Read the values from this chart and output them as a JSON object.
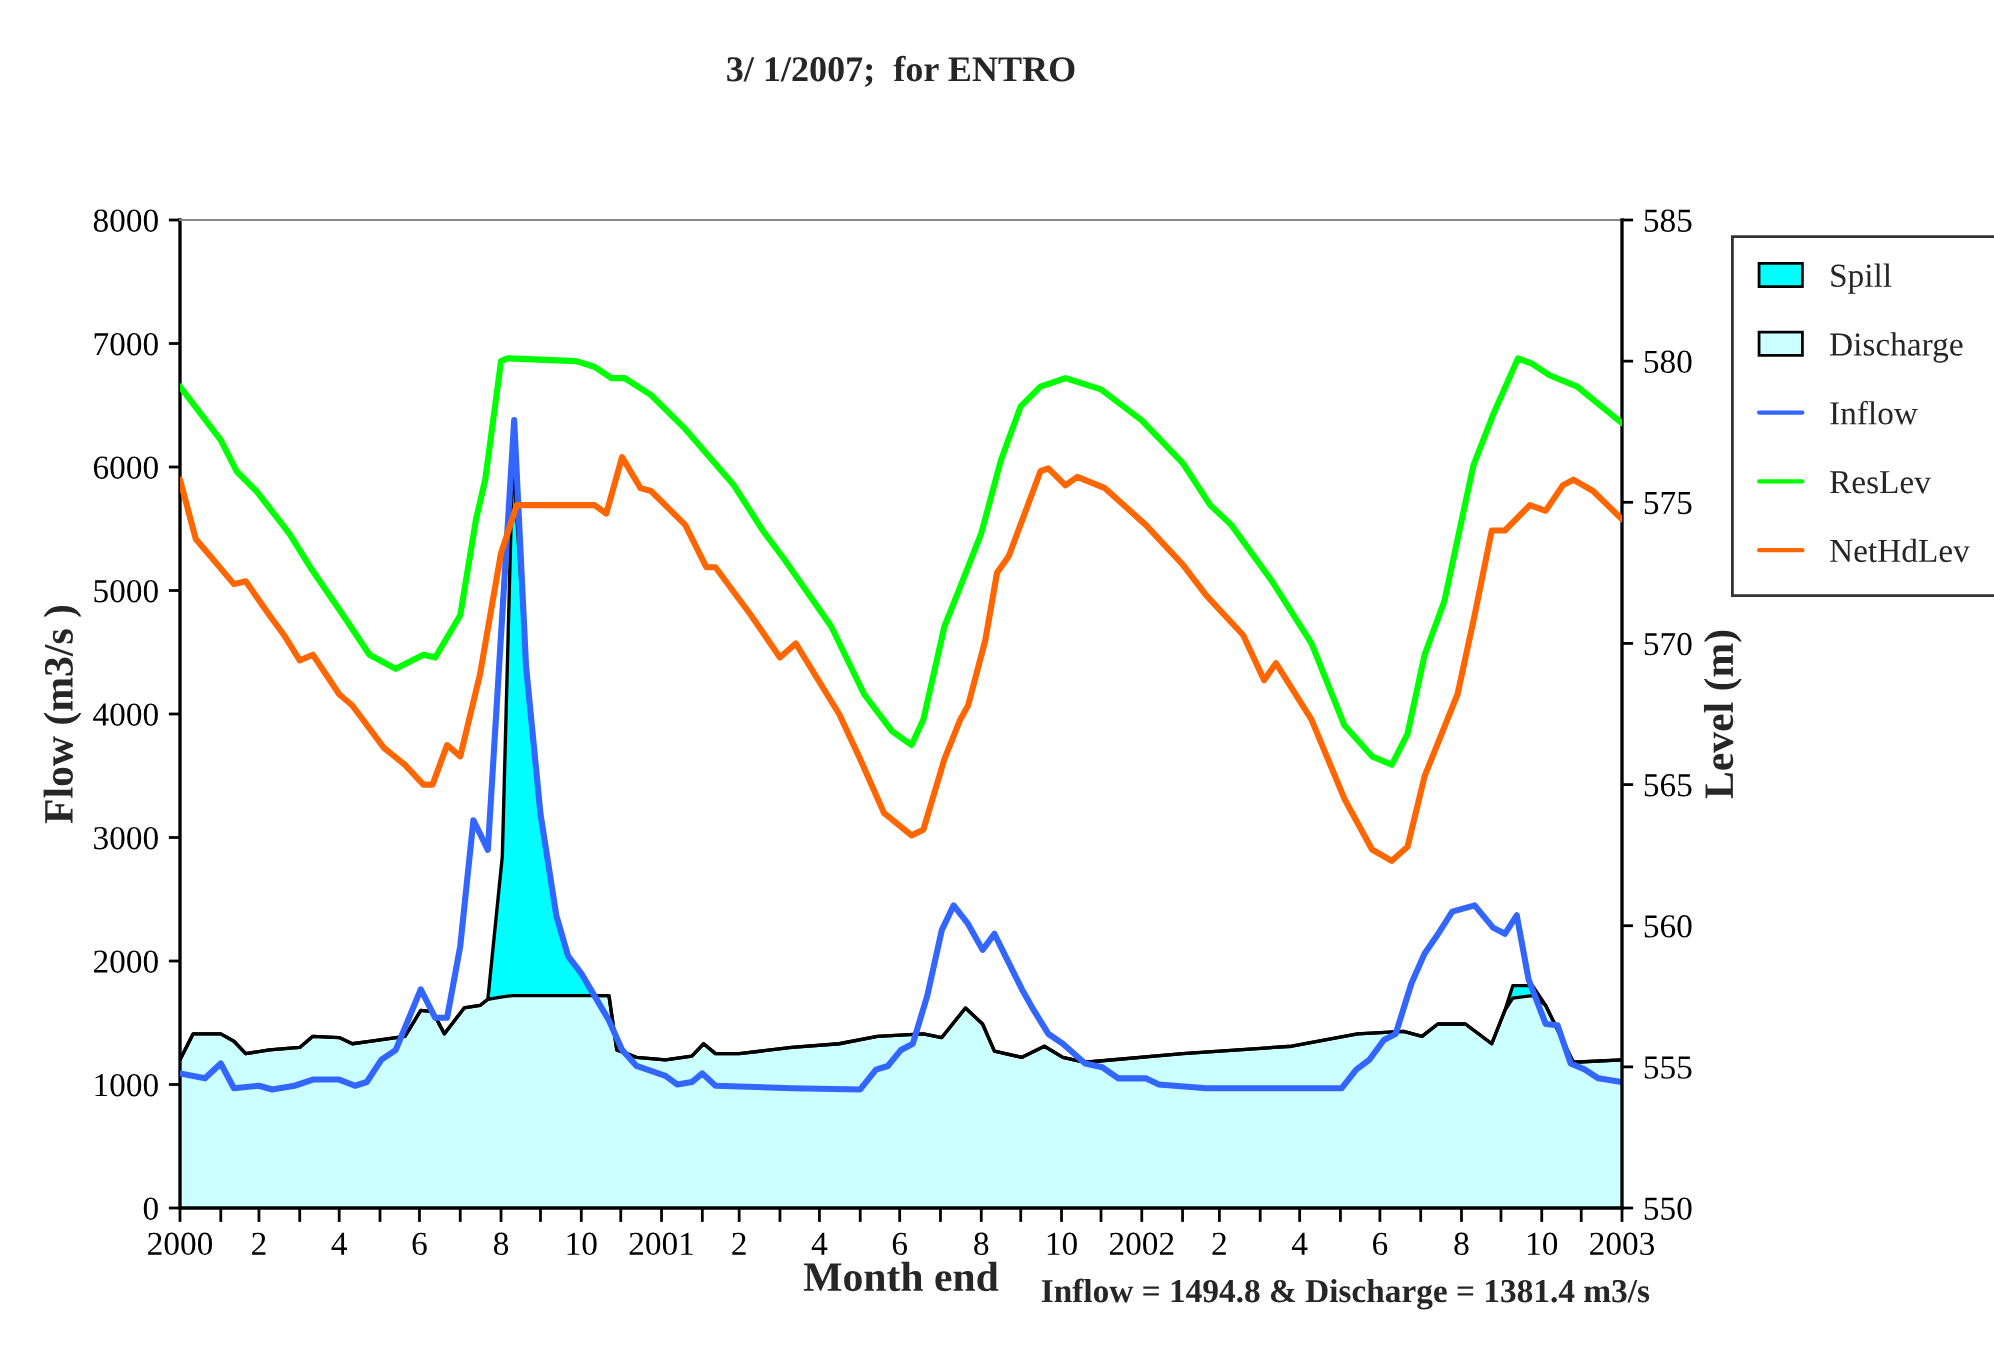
{
  "chart_data": {
    "type": "area",
    "title": "3/ 1/2007;  for ENTRO",
    "xlabel": "Month end",
    "ylabel": "Flow (m3/s )",
    "y2label": "Level (m)",
    "annotations": [
      "Inflow = 1494.8 & Discharge = 1381.4 m3/s"
    ],
    "stacked": true,
    "legend": "right",
    "grid": false,
    "x": [
      "2000-01-01",
      "2000-01-11",
      "2000-02-01",
      "2000-02-11",
      "2000-02-20",
      "2000-03-09",
      "2000-04-01",
      "2000-04-11",
      "2000-05-01",
      "2000-05-11",
      "2000-05-24",
      "2000-06-20",
      "2000-07-02",
      "2000-07-11",
      "2000-07-20",
      "2000-08-04",
      "2000-08-16",
      "2000-08-22",
      "2000-09-02",
      "2000-09-10",
      "2000-09-20",
      "2000-10-01",
      "2000-10-13",
      "2000-10-22",
      "2000-11-01",
      "2000-11-10",
      "2000-11-22",
      "2000-11-28",
      "2000-12-13",
      "2001-01-04",
      "2001-01-24",
      "2001-02-02",
      "2001-02-11",
      "2001-03-01",
      "2001-04-10",
      "2001-05-16",
      "2001-06-14",
      "2001-07-19",
      "2001-08-02",
      "2001-08-20",
      "2001-09-02",
      "2001-09-11",
      "2001-10-02",
      "2001-10-19",
      "2001-11-02",
      "2001-11-19",
      "2002-02-01",
      "2002-04-25",
      "2002-06-14",
      "2002-07-19",
      "2002-08-02",
      "2002-08-14",
      "2002-09-04",
      "2002-09-24",
      "2002-10-04",
      "2002-10-10",
      "2002-10-25",
      "2002-11-04",
      "2002-11-25",
      "2003-01-01"
    ],
    "xlim": [
      "2000-01",
      "2003-01"
    ],
    "xticks": [
      {
        "value": "2000-01",
        "label": "2000"
      },
      {
        "value": "2000-02",
        "label": null
      },
      {
        "value": "2000-03",
        "label": "2"
      },
      {
        "value": "2000-04",
        "label": null
      },
      {
        "value": "2000-05",
        "label": "4"
      },
      {
        "value": "2000-06",
        "label": null
      },
      {
        "value": "2000-07",
        "label": "6"
      },
      {
        "value": "2000-08",
        "label": null
      },
      {
        "value": "2000-09",
        "label": "8"
      },
      {
        "value": "2000-10",
        "label": null
      },
      {
        "value": "2000-11",
        "label": "10"
      },
      {
        "value": "2000-12",
        "label": null
      },
      {
        "value": "2001-01",
        "label": "2001"
      },
      {
        "value": "2001-02",
        "label": null
      },
      {
        "value": "2001-03",
        "label": "2"
      },
      {
        "value": "2001-04",
        "label": null
      },
      {
        "value": "2001-05",
        "label": "4"
      },
      {
        "value": "2001-06",
        "label": null
      },
      {
        "value": "2001-07",
        "label": "6"
      },
      {
        "value": "2001-08",
        "label": null
      },
      {
        "value": "2001-09",
        "label": "8"
      },
      {
        "value": "2001-10",
        "label": null
      },
      {
        "value": "2001-11",
        "label": "10"
      },
      {
        "value": "2001-12",
        "label": null
      },
      {
        "value": "2002-01",
        "label": "2002"
      },
      {
        "value": "2002-02",
        "label": null
      },
      {
        "value": "2002-03",
        "label": "2"
      },
      {
        "value": "2002-04",
        "label": null
      },
      {
        "value": "2002-05",
        "label": "4"
      },
      {
        "value": "2002-06",
        "label": null
      },
      {
        "value": "2002-07",
        "label": "6"
      },
      {
        "value": "2002-08",
        "label": null
      },
      {
        "value": "2002-09",
        "label": "8"
      },
      {
        "value": "2002-10",
        "label": null
      },
      {
        "value": "2002-11",
        "label": "10"
      },
      {
        "value": "2002-12",
        "label": null
      },
      {
        "value": "2003-01",
        "label": "2003"
      }
    ],
    "ylim": [
      0,
      8000
    ],
    "yticks": [
      0,
      1000,
      2000,
      3000,
      4000,
      5000,
      6000,
      7000,
      8000
    ],
    "y2lim": [
      550,
      585
    ],
    "y2ticks": [
      550,
      555,
      560,
      565,
      570,
      575,
      580,
      585
    ],
    "series": [
      {
        "name": "Discharge",
        "color": "#ccffff",
        "values": [
          1200,
          1410,
          1410,
          1350,
          1250,
          1280,
          1300,
          1390,
          1380,
          1330,
          1350,
          1390,
          1600,
          1590,
          1410,
          1620,
          1640,
          1690,
          1710,
          1720,
          1720,
          1720,
          1720,
          1720,
          1720,
          1720,
          1720,
          1280,
          1220,
          1200,
          1230,
          1330,
          1250,
          1250,
          1300,
          1330,
          1390,
          1410,
          1380,
          1620,
          1490,
          1270,
          1220,
          1310,
          1220,
          1180,
          1250,
          1310,
          1410,
          1430,
          1390,
          1490,
          1490,
          1330,
          1600,
          1700,
          1720,
          1640,
          1180,
          1200
        ]
      },
      {
        "name": "Spill",
        "color": "#00ffff",
        "values": [
          0,
          0,
          0,
          0,
          0,
          0,
          0,
          0,
          0,
          0,
          0,
          0,
          0,
          0,
          0,
          0,
          0,
          0,
          1140,
          4380,
          2670,
          1470,
          650,
          320,
          180,
          0,
          0,
          0,
          0,
          0,
          0,
          0,
          0,
          0,
          0,
          0,
          0,
          0,
          0,
          0,
          0,
          0,
          0,
          0,
          0,
          0,
          0,
          0,
          0,
          0,
          0,
          0,
          0,
          0,
          0,
          100,
          80,
          0,
          0,
          0
        ]
      },
      {
        "name": "Inflow",
        "type": "line",
        "color": "#3366ff",
        "x": [
          "2000-01-01",
          "2000-01-20",
          "2000-02-01",
          "2000-02-11",
          "2000-03-01",
          "2000-03-11",
          "2000-03-28",
          "2000-04-11",
          "2000-05-01",
          "2000-05-13",
          "2000-05-22",
          "2000-06-02",
          "2000-06-13",
          "2000-07-02",
          "2000-07-13",
          "2000-07-22",
          "2000-08-01",
          "2000-08-11",
          "2000-08-22",
          "2000-09-11",
          "2000-09-20",
          "2000-10-01",
          "2000-10-13",
          "2000-10-22",
          "2000-11-01",
          "2000-11-22",
          "2000-12-02",
          "2000-12-13",
          "2001-01-04",
          "2001-01-13",
          "2001-01-24",
          "2001-02-01",
          "2001-02-11",
          "2001-04-10",
          "2001-06-01",
          "2001-06-13",
          "2001-06-22",
          "2001-07-02",
          "2001-07-11",
          "2001-07-22",
          "2001-08-02",
          "2001-08-11",
          "2001-08-22",
          "2001-09-02",
          "2001-09-11",
          "2001-10-02",
          "2001-10-11",
          "2001-10-22",
          "2001-11-02",
          "2001-11-19",
          "2001-12-02",
          "2001-12-14",
          "2002-01-04",
          "2002-01-14",
          "2002-02-19",
          "2002-04-25",
          "2002-06-02",
          "2002-06-13",
          "2002-06-23",
          "2002-07-04",
          "2002-07-13",
          "2002-07-25",
          "2002-08-04",
          "2002-08-13",
          "2002-08-25",
          "2002-09-11",
          "2002-09-25",
          "2002-10-04",
          "2002-10-13",
          "2002-10-22",
          "2002-11-04",
          "2002-11-13",
          "2002-11-23",
          "2002-12-04",
          "2002-12-14",
          "2003-01-01"
        ],
        "values": [
          1090,
          1050,
          1170,
          970,
          990,
          960,
          990,
          1040,
          1040,
          990,
          1020,
          1200,
          1280,
          1770,
          1540,
          1540,
          2120,
          3140,
          2900,
          6380,
          4390,
          3190,
          2370,
          2040,
          1900,
          1520,
          1280,
          1150,
          1070,
          1000,
          1020,
          1090,
          990,
          970,
          960,
          1120,
          1150,
          1280,
          1330,
          1720,
          2250,
          2450,
          2300,
          2090,
          2220,
          1770,
          1600,
          1410,
          1330,
          1170,
          1140,
          1050,
          1050,
          1000,
          970,
          970,
          970,
          1120,
          1200,
          1360,
          1410,
          1820,
          2060,
          2200,
          2400,
          2450,
          2270,
          2220,
          2370,
          1850,
          1490,
          1480,
          1170,
          1120,
          1050,
          1020
        ]
      },
      {
        "name": "ResLev",
        "type": "line",
        "axis": "y2",
        "color": "#00ff00",
        "x": [
          "2000-01-01",
          "2000-02-01",
          "2000-02-13",
          "2000-02-28",
          "2000-03-24",
          "2000-04-09",
          "2000-05-04",
          "2000-05-24",
          "2000-06-13",
          "2000-07-04",
          "2000-07-13",
          "2000-08-01",
          "2000-08-13",
          "2000-08-20",
          "2000-09-01",
          "2000-09-06",
          "2000-10-28",
          "2000-11-11",
          "2000-11-24",
          "2000-12-04",
          "2000-12-24",
          "2001-01-19",
          "2001-02-25",
          "2001-03-19",
          "2001-04-04",
          "2001-05-10",
          "2001-06-04",
          "2001-06-25",
          "2001-07-10",
          "2001-07-19",
          "2001-08-04",
          "2001-08-16",
          "2001-09-01",
          "2001-09-16",
          "2001-10-01",
          "2001-10-16",
          "2001-11-04",
          "2001-12-01",
          "2002-01-01",
          "2002-02-01",
          "2002-02-22",
          "2002-03-10",
          "2002-04-10",
          "2002-05-10",
          "2002-06-04",
          "2002-06-25",
          "2002-07-10",
          "2002-07-22",
          "2002-08-04",
          "2002-08-19",
          "2002-09-10",
          "2002-09-25",
          "2002-10-14",
          "2002-10-25",
          "2002-11-07",
          "2002-11-28",
          "2003-01-01"
        ],
        "values": [
          579.1,
          577.2,
          576.1,
          575.4,
          573.9,
          572.7,
          571.0,
          569.6,
          569.1,
          569.6,
          569.5,
          571.0,
          574.4,
          575.8,
          580.0,
          580.1,
          580.0,
          579.8,
          579.4,
          579.4,
          578.8,
          577.6,
          575.6,
          574.0,
          573.0,
          570.6,
          568.2,
          566.9,
          566.4,
          567.3,
          570.6,
          572.0,
          573.9,
          576.5,
          578.4,
          579.1,
          579.4,
          579.0,
          577.9,
          576.4,
          574.9,
          574.2,
          572.2,
          570.0,
          567.1,
          566.0,
          565.7,
          566.8,
          569.6,
          571.5,
          576.3,
          578.1,
          580.1,
          579.9,
          579.5,
          579.1,
          577.8
        ]
      },
      {
        "name": "NetHdLev",
        "type": "line",
        "axis": "y2",
        "color": "#ff6600",
        "x": [
          "2000-01-01",
          "2000-01-13",
          "2000-01-24",
          "2000-02-11",
          "2000-02-20",
          "2000-03-09",
          "2000-03-20",
          "2000-04-01",
          "2000-04-11",
          "2000-05-01",
          "2000-05-11",
          "2000-06-04",
          "2000-06-20",
          "2000-07-04",
          "2000-07-11",
          "2000-07-22",
          "2000-08-01",
          "2000-08-16",
          "2000-09-01",
          "2000-09-13",
          "2000-11-11",
          "2000-11-20",
          "2000-12-02",
          "2000-12-16",
          "2000-12-24",
          "2001-01-19",
          "2001-02-04",
          "2001-02-11",
          "2001-03-10",
          "2001-04-01",
          "2001-04-13",
          "2001-05-16",
          "2001-06-01",
          "2001-06-19",
          "2001-07-10",
          "2001-07-19",
          "2001-08-04",
          "2001-08-16",
          "2001-08-22",
          "2001-09-04",
          "2001-09-13",
          "2001-09-22",
          "2001-10-04",
          "2001-10-16",
          "2001-10-22",
          "2001-11-04",
          "2001-11-13",
          "2001-12-04",
          "2002-01-04",
          "2002-02-01",
          "2002-02-19",
          "2002-03-19",
          "2002-04-04",
          "2002-04-13",
          "2002-05-10",
          "2002-06-04",
          "2002-06-25",
          "2002-07-10",
          "2002-07-22",
          "2002-08-04",
          "2002-08-29",
          "2002-09-11",
          "2002-09-24",
          "2002-10-04",
          "2002-10-23",
          "2002-11-04",
          "2002-11-17",
          "2002-11-25",
          "2002-12-10",
          "2003-01-01"
        ],
        "values": [
          575.8,
          573.7,
          573.1,
          572.1,
          572.2,
          571.0,
          570.3,
          569.4,
          569.6,
          568.2,
          567.8,
          566.3,
          565.7,
          565.0,
          565.0,
          566.4,
          566.0,
          568.9,
          573.2,
          574.9,
          574.9,
          574.6,
          576.6,
          575.5,
          575.4,
          574.2,
          572.7,
          572.7,
          571.0,
          569.5,
          570.0,
          567.5,
          565.9,
          564.0,
          563.2,
          563.4,
          565.9,
          567.3,
          567.8,
          570.1,
          572.5,
          573.1,
          574.6,
          576.1,
          576.2,
          575.6,
          575.9,
          575.5,
          574.2,
          572.8,
          571.7,
          570.3,
          568.7,
          569.3,
          567.3,
          564.5,
          562.7,
          562.3,
          562.8,
          565.3,
          568.2,
          571.0,
          574.0,
          574.0,
          574.9,
          574.7,
          575.6,
          575.8,
          575.4,
          574.4
        ]
      }
    ]
  }
}
